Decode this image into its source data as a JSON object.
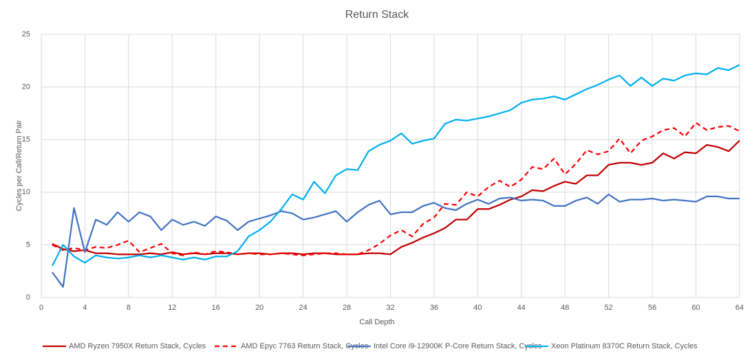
{
  "chart_data": {
    "type": "line",
    "title": "Return Stack",
    "x_label": "Call Depth",
    "y_label": "Cycles per Call/Return Pair",
    "x": [
      1,
      2,
      3,
      4,
      5,
      6,
      7,
      8,
      9,
      10,
      11,
      12,
      13,
      14,
      15,
      16,
      17,
      18,
      19,
      20,
      21,
      22,
      23,
      24,
      25,
      26,
      27,
      28,
      29,
      30,
      31,
      32,
      33,
      34,
      35,
      36,
      37,
      38,
      39,
      40,
      41,
      42,
      43,
      44,
      45,
      46,
      47,
      48,
      49,
      50,
      51,
      52,
      53,
      54,
      55,
      56,
      57,
      58,
      59,
      60,
      61,
      62,
      63,
      64
    ],
    "xlim": [
      0,
      64
    ],
    "xticks": [
      0,
      4,
      8,
      12,
      16,
      20,
      24,
      28,
      32,
      36,
      40,
      44,
      48,
      52,
      56,
      60,
      64
    ],
    "ylim": [
      0,
      25
    ],
    "yticks": [
      0,
      5,
      10,
      15,
      20,
      25
    ],
    "grid": true,
    "legend": "bottom",
    "series": [
      {
        "name": "AMD Ryzen 7950X Return Stack, Cycles",
        "color": "#c00000",
        "dashed": false,
        "values": [
          5.1,
          4.6,
          4.4,
          4.5,
          4.2,
          4.2,
          4.1,
          4.1,
          4.1,
          4.2,
          4.1,
          4.3,
          4.1,
          4.2,
          4.1,
          4.2,
          4.2,
          4.1,
          4.2,
          4.2,
          4.1,
          4.2,
          4.2,
          4.1,
          4.2,
          4.2,
          4.1,
          4.1,
          4.1,
          4.2,
          4.2,
          4.1,
          4.8,
          5.2,
          5.7,
          6.1,
          6.6,
          7.4,
          7.4,
          8.4,
          8.4,
          8.8,
          9.3,
          9.6,
          10.2,
          10.1,
          10.6,
          11.0,
          10.8,
          11.6,
          11.6,
          12.6,
          12.8,
          12.8,
          12.6,
          12.8,
          13.7,
          13.2,
          13.8,
          13.7,
          14.5,
          14.3,
          13.9,
          14.9
        ]
      },
      {
        "name": "AMD Epyc 7763 Return Stack, Cycles",
        "color": "#ff0000",
        "dashed": true,
        "values": [
          5.0,
          4.5,
          4.7,
          4.5,
          4.8,
          4.7,
          5.0,
          5.4,
          4.3,
          4.7,
          5.1,
          4.2,
          4.0,
          4.3,
          4.1,
          4.4,
          4.3,
          4.1,
          4.2,
          4.1,
          4.1,
          4.2,
          4.1,
          4.0,
          4.1,
          4.2,
          4.2,
          4.1,
          4.1,
          4.5,
          5.1,
          5.9,
          6.4,
          5.8,
          7.0,
          7.6,
          8.9,
          8.8,
          10.0,
          9.6,
          10.5,
          11.1,
          10.5,
          11.2,
          12.4,
          12.2,
          13.2,
          11.7,
          12.7,
          14.0,
          13.6,
          13.9,
          15.1,
          13.7,
          14.9,
          15.3,
          15.9,
          16.1,
          15.3,
          16.6,
          15.9,
          16.2,
          16.3,
          15.8
        ]
      },
      {
        "name": "Intel Core i9-12900K P-Core Return Stack, Cycles",
        "color": "#4472c4",
        "dashed": false,
        "values": [
          2.4,
          1.0,
          8.5,
          4.3,
          7.4,
          6.9,
          8.1,
          7.2,
          8.1,
          7.7,
          6.4,
          7.4,
          6.9,
          7.2,
          6.8,
          7.7,
          7.3,
          6.4,
          7.2,
          7.5,
          7.8,
          8.2,
          8.0,
          7.4,
          7.6,
          7.9,
          8.2,
          7.2,
          8.1,
          8.8,
          9.2,
          7.9,
          8.1,
          8.1,
          8.7,
          9.0,
          8.5,
          8.3,
          8.9,
          9.3,
          8.9,
          9.4,
          9.5,
          9.2,
          9.3,
          9.2,
          8.7,
          8.7,
          9.2,
          9.5,
          8.9,
          9.8,
          9.1,
          9.3,
          9.3,
          9.4,
          9.2,
          9.3,
          9.2,
          9.1,
          9.6,
          9.6,
          9.4,
          9.4
        ]
      },
      {
        "name": "Xeon Platinum 8370C Return Stack, Cycles",
        "color": "#00b0f0",
        "dashed": false,
        "values": [
          3.0,
          5.0,
          3.9,
          3.3,
          4.0,
          3.8,
          3.7,
          3.8,
          4.0,
          3.8,
          4.0,
          3.8,
          3.6,
          3.8,
          3.6,
          3.9,
          3.9,
          4.4,
          5.8,
          6.4,
          7.2,
          8.4,
          9.8,
          9.3,
          11.0,
          9.9,
          11.6,
          12.2,
          12.1,
          13.9,
          14.5,
          14.9,
          15.6,
          14.6,
          14.9,
          15.1,
          16.5,
          16.9,
          16.8,
          17.0,
          17.2,
          17.5,
          17.8,
          18.5,
          18.8,
          18.9,
          19.1,
          18.8,
          19.3,
          19.8,
          20.2,
          20.7,
          21.1,
          20.1,
          20.9,
          20.1,
          20.8,
          20.6,
          21.1,
          21.3,
          21.2,
          21.8,
          21.6,
          22.1
        ]
      }
    ]
  }
}
